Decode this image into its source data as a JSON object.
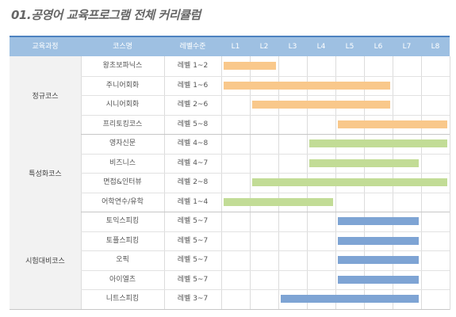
{
  "page_title": "01.공영어 교육프로그램 전체 커리큘럼",
  "headers": [
    "교육과정",
    "코스명",
    "레벨수준",
    "L1",
    "L2",
    "L3",
    "L4",
    "L5",
    "L6",
    "L7",
    "L8"
  ],
  "colors": {
    "regular": "#f9c88b",
    "special": "#c2dc96",
    "exam": "#7ea4d4",
    "header_bg": "#9ec0e2",
    "header_top": "#4d82c0"
  },
  "groups": [
    {
      "name": "정규코스",
      "color_key": "regular",
      "courses": [
        {
          "name": "왕초보파닉스",
          "level_text": "레벨 1~2",
          "from": 1,
          "to": 2
        },
        {
          "name": "주니어회화",
          "level_text": "레벨 1~6",
          "from": 1,
          "to": 6
        },
        {
          "name": "시니어회화",
          "level_text": "레벨 2~6",
          "from": 2,
          "to": 6
        },
        {
          "name": "프리토킹코스",
          "level_text": "레벨 5~8",
          "from": 5,
          "to": 8
        }
      ]
    },
    {
      "name": "특성화코스",
      "color_key": "special",
      "courses": [
        {
          "name": "영자신문",
          "level_text": "레벨 4~8",
          "from": 4,
          "to": 8
        },
        {
          "name": "비즈니스",
          "level_text": "레벨 4~7",
          "from": 4,
          "to": 7
        },
        {
          "name": "면접&인터뷰",
          "level_text": "레벨 2~8",
          "from": 2,
          "to": 8
        },
        {
          "name": "어학연수/유학",
          "level_text": "레벨 1~4",
          "from": 1,
          "to": 4
        }
      ]
    },
    {
      "name": "시험대비코스",
      "color_key": "exam",
      "courses": [
        {
          "name": "토익스피킹",
          "level_text": "레벨 5~7",
          "from": 5,
          "to": 7
        },
        {
          "name": "토플스피킹",
          "level_text": "레벨 5~7",
          "from": 5,
          "to": 7
        },
        {
          "name": "오픽",
          "level_text": "레벨 5~7",
          "from": 5,
          "to": 7
        },
        {
          "name": "아이엘츠",
          "level_text": "레벨 5~7",
          "from": 5,
          "to": 7
        },
        {
          "name": "니트스피킹",
          "level_text": "레벨 3~7",
          "from": 3,
          "to": 7
        }
      ]
    }
  ]
}
